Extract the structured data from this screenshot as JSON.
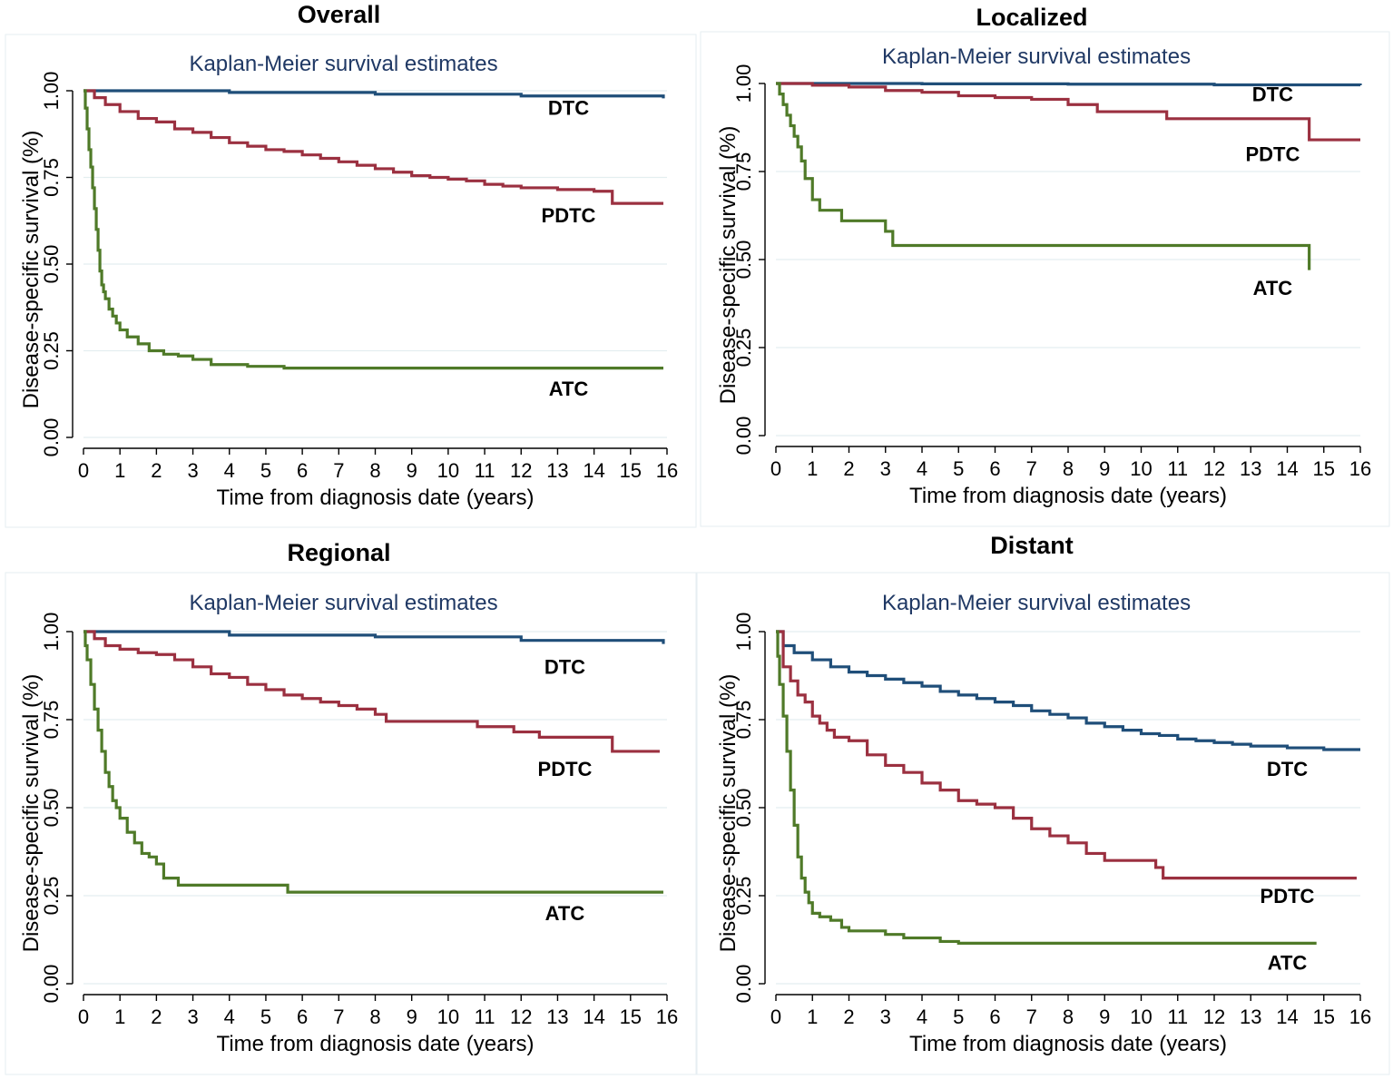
{
  "colors": {
    "DTC": "#1f4e79",
    "PDTC": "#9b3040",
    "ATC": "#4f7a28",
    "subtitle": "#1f3864"
  },
  "chart_data": [
    {
      "type": "line",
      "title": "Overall",
      "subtitle": "Kaplan-Meier survival estimates",
      "xlabel": "Time from diagnosis date (years)",
      "ylabel": "Disease-specific survival (%)",
      "xlim": [
        0,
        16
      ],
      "ylim": [
        0,
        1
      ],
      "xticks": [
        "0",
        "1",
        "2",
        "3",
        "4",
        "5",
        "6",
        "7",
        "8",
        "9",
        "10",
        "11",
        "12",
        "13",
        "14",
        "15",
        "16"
      ],
      "yticks": [
        "0.00",
        "0.25",
        "0.50",
        "0.75",
        "1.00"
      ],
      "series": [
        {
          "name": "DTC",
          "label": "DTC",
          "label_at": [
            13.3,
            0.93
          ],
          "x": [
            0,
            4,
            8,
            12,
            15.9
          ],
          "y": [
            1.0,
            0.995,
            0.99,
            0.985,
            0.978
          ]
        },
        {
          "name": "PDTC",
          "label": "PDTC",
          "label_at": [
            13.3,
            0.62
          ],
          "x": [
            0,
            0.3,
            0.6,
            1,
            1.5,
            2,
            2.5,
            3,
            3.5,
            4,
            4.5,
            5,
            5.5,
            6,
            6.5,
            7,
            7.5,
            8,
            8.5,
            9,
            9.5,
            10,
            10.5,
            11,
            11.5,
            12,
            13,
            14,
            14.4,
            14.5,
            15,
            15.9
          ],
          "y": [
            1.0,
            0.98,
            0.96,
            0.94,
            0.92,
            0.91,
            0.89,
            0.88,
            0.865,
            0.85,
            0.84,
            0.83,
            0.825,
            0.815,
            0.805,
            0.795,
            0.785,
            0.775,
            0.765,
            0.755,
            0.75,
            0.745,
            0.74,
            0.73,
            0.725,
            0.72,
            0.715,
            0.71,
            0.71,
            0.675,
            0.675,
            0.675
          ]
        },
        {
          "name": "ATC",
          "label": "ATC",
          "label_at": [
            13.3,
            0.12
          ],
          "x": [
            0,
            0.05,
            0.1,
            0.15,
            0.2,
            0.25,
            0.3,
            0.35,
            0.4,
            0.45,
            0.5,
            0.55,
            0.6,
            0.7,
            0.8,
            0.9,
            1.0,
            1.2,
            1.5,
            1.8,
            2.2,
            2.6,
            3.0,
            3.5,
            4.5,
            5.5,
            6,
            15.9
          ],
          "y": [
            1.0,
            0.95,
            0.89,
            0.83,
            0.78,
            0.72,
            0.66,
            0.6,
            0.54,
            0.48,
            0.44,
            0.42,
            0.4,
            0.37,
            0.35,
            0.33,
            0.31,
            0.29,
            0.27,
            0.25,
            0.24,
            0.235,
            0.225,
            0.21,
            0.205,
            0.2,
            0.2,
            0.2
          ]
        }
      ]
    },
    {
      "type": "line",
      "title": "Localized",
      "subtitle": "Kaplan-Meier survival estimates",
      "xlabel": "Time from diagnosis date (years)",
      "ylabel": "Disease-specific survival (%)",
      "xlim": [
        0,
        16
      ],
      "ylim": [
        0,
        1
      ],
      "xticks": [
        "0",
        "1",
        "2",
        "3",
        "4",
        "5",
        "6",
        "7",
        "8",
        "9",
        "10",
        "11",
        "12",
        "13",
        "14",
        "15",
        "16"
      ],
      "yticks": [
        "0.00",
        "0.25",
        "0.50",
        "0.75",
        "1.00"
      ],
      "series": [
        {
          "name": "DTC",
          "label": "DTC",
          "label_at": [
            13.6,
            0.95
          ],
          "x": [
            0,
            4,
            8,
            12,
            16
          ],
          "y": [
            1.0,
            0.999,
            0.998,
            0.996,
            0.995
          ]
        },
        {
          "name": "PDTC",
          "label": "PDTC",
          "label_at": [
            13.6,
            0.78
          ],
          "x": [
            0,
            1,
            2,
            3,
            4,
            5,
            6,
            7,
            8,
            8.8,
            10.7,
            14.5,
            14.6,
            16
          ],
          "y": [
            1.0,
            0.995,
            0.99,
            0.98,
            0.975,
            0.965,
            0.96,
            0.955,
            0.94,
            0.92,
            0.9,
            0.9,
            0.84,
            0.84
          ]
        },
        {
          "name": "ATC",
          "label": "ATC",
          "label_at": [
            13.6,
            0.4
          ],
          "x": [
            0,
            0.1,
            0.2,
            0.3,
            0.4,
            0.5,
            0.6,
            0.7,
            0.8,
            1.0,
            1.2,
            1.8,
            3.0,
            3.2,
            14.6
          ],
          "y": [
            1.0,
            0.97,
            0.94,
            0.91,
            0.88,
            0.85,
            0.82,
            0.78,
            0.73,
            0.67,
            0.64,
            0.61,
            0.58,
            0.54,
            0.47
          ]
        }
      ]
    },
    {
      "type": "line",
      "title": "Regional",
      "subtitle": "Kaplan-Meier survival estimates",
      "xlabel": "Time from diagnosis date (years)",
      "ylabel": "Disease-specific survival (%)",
      "xlim": [
        0,
        16
      ],
      "ylim": [
        0,
        1
      ],
      "xticks": [
        "0",
        "1",
        "2",
        "3",
        "4",
        "5",
        "6",
        "7",
        "8",
        "9",
        "10",
        "11",
        "12",
        "13",
        "14",
        "15",
        "16"
      ],
      "yticks": [
        "0.00",
        "0.25",
        "0.50",
        "0.75",
        "1.00"
      ],
      "series": [
        {
          "name": "DTC",
          "label": "DTC",
          "label_at": [
            13.2,
            0.88
          ],
          "x": [
            0,
            4,
            8,
            12,
            15.9
          ],
          "y": [
            1.0,
            0.99,
            0.985,
            0.975,
            0.965
          ]
        },
        {
          "name": "PDTC",
          "label": "PDTC",
          "label_at": [
            13.2,
            0.59
          ],
          "x": [
            0,
            0.3,
            0.6,
            1,
            1.5,
            2,
            2.5,
            3,
            3.5,
            4,
            4.5,
            5,
            5.5,
            6,
            6.5,
            7,
            7.5,
            8,
            8.3,
            9,
            10,
            10.8,
            11.8,
            12.5,
            14,
            14.5,
            15.8
          ],
          "y": [
            1.0,
            0.98,
            0.96,
            0.95,
            0.94,
            0.935,
            0.92,
            0.9,
            0.88,
            0.87,
            0.85,
            0.835,
            0.82,
            0.81,
            0.8,
            0.79,
            0.78,
            0.765,
            0.745,
            0.745,
            0.745,
            0.73,
            0.715,
            0.7,
            0.7,
            0.66,
            0.66
          ]
        },
        {
          "name": "ATC",
          "label": "ATC",
          "label_at": [
            13.2,
            0.18
          ],
          "x": [
            0,
            0.05,
            0.1,
            0.2,
            0.3,
            0.4,
            0.5,
            0.6,
            0.7,
            0.8,
            0.9,
            1.0,
            1.2,
            1.4,
            1.6,
            1.8,
            2.0,
            2.2,
            2.6,
            4,
            5.5,
            5.6,
            15.9
          ],
          "y": [
            1.0,
            0.96,
            0.92,
            0.85,
            0.78,
            0.72,
            0.66,
            0.6,
            0.56,
            0.52,
            0.5,
            0.47,
            0.43,
            0.4,
            0.37,
            0.36,
            0.34,
            0.3,
            0.28,
            0.28,
            0.28,
            0.26,
            0.26
          ]
        }
      ]
    },
    {
      "type": "line",
      "title": "Distant",
      "subtitle": "Kaplan-Meier survival estimates",
      "xlabel": "Time from diagnosis date (years)",
      "ylabel": "Disease-specific survival (%)",
      "xlim": [
        0,
        16
      ],
      "ylim": [
        0,
        1
      ],
      "xticks": [
        "0",
        "1",
        "2",
        "3",
        "4",
        "5",
        "6",
        "7",
        "8",
        "9",
        "10",
        "11",
        "12",
        "13",
        "14",
        "15",
        "16"
      ],
      "yticks": [
        "0.00",
        "0.25",
        "0.50",
        "0.75",
        "1.00"
      ],
      "series": [
        {
          "name": "DTC",
          "label": "DTC",
          "label_at": [
            14.0,
            0.59
          ],
          "x": [
            0,
            0.2,
            0.5,
            1,
            1.5,
            2,
            2.5,
            3,
            3.5,
            4,
            4.5,
            5,
            5.5,
            6,
            6.5,
            7,
            7.5,
            8,
            8.5,
            9,
            9.5,
            10,
            10.5,
            11,
            11.5,
            12,
            12.5,
            13,
            14,
            15,
            16
          ],
          "y": [
            1.0,
            0.96,
            0.94,
            0.92,
            0.9,
            0.885,
            0.875,
            0.865,
            0.855,
            0.845,
            0.83,
            0.82,
            0.81,
            0.8,
            0.79,
            0.775,
            0.765,
            0.755,
            0.74,
            0.73,
            0.72,
            0.71,
            0.705,
            0.695,
            0.69,
            0.685,
            0.68,
            0.675,
            0.67,
            0.665,
            0.665
          ]
        },
        {
          "name": "PDTC",
          "label": "PDTC",
          "label_at": [
            14.0,
            0.23
          ],
          "x": [
            0,
            0.2,
            0.4,
            0.6,
            0.8,
            1.0,
            1.2,
            1.4,
            1.6,
            2.0,
            2.5,
            3.0,
            3.5,
            4.0,
            4.5,
            5.0,
            5.5,
            6.0,
            6.5,
            7.0,
            7.5,
            8.0,
            8.5,
            9.0,
            10.0,
            10.4,
            10.6,
            15.9
          ],
          "y": [
            1.0,
            0.9,
            0.86,
            0.82,
            0.8,
            0.76,
            0.74,
            0.72,
            0.7,
            0.69,
            0.65,
            0.62,
            0.6,
            0.57,
            0.55,
            0.52,
            0.51,
            0.5,
            0.47,
            0.44,
            0.42,
            0.4,
            0.37,
            0.35,
            0.35,
            0.33,
            0.3,
            0.3
          ]
        },
        {
          "name": "ATC",
          "label": "ATC",
          "label_at": [
            14.0,
            0.04
          ],
          "x": [
            0,
            0.05,
            0.1,
            0.2,
            0.3,
            0.4,
            0.5,
            0.6,
            0.7,
            0.8,
            0.9,
            1.0,
            1.2,
            1.5,
            1.8,
            2.0,
            3.0,
            3.5,
            4.5,
            5.0,
            14.8
          ],
          "y": [
            1.0,
            0.93,
            0.85,
            0.76,
            0.66,
            0.55,
            0.45,
            0.36,
            0.3,
            0.26,
            0.23,
            0.2,
            0.19,
            0.18,
            0.16,
            0.15,
            0.14,
            0.13,
            0.12,
            0.115,
            0.115
          ]
        }
      ]
    }
  ]
}
